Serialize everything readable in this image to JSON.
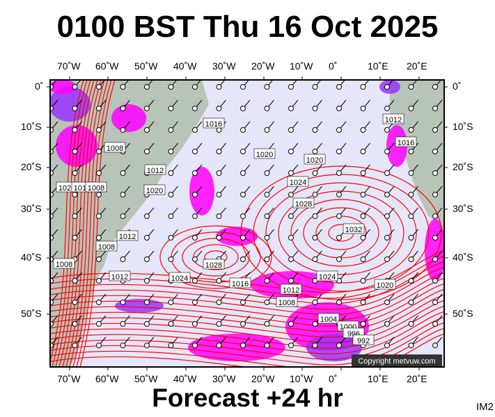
{
  "title": "0100 BST Thu 16 Oct 2025",
  "footer": "Forecast +24 hr",
  "image_code": "IM2",
  "copyright": "Copyright metvuw.com",
  "lon_labels": [
    "70˚W",
    "60˚W",
    "50˚W",
    "40˚W",
    "30˚W",
    "20˚W",
    "10˚W",
    "0˚",
    "10˚E",
    "20˚E"
  ],
  "lat_labels": [
    "0˚",
    "10˚S",
    "20˚S",
    "30˚S",
    "40˚S",
    "50˚S"
  ],
  "isobar_labels": [
    "1016",
    "1008",
    "1020",
    "1020",
    "1024",
    "1028",
    "1032",
    "1028",
    "1024",
    "1024",
    "1020",
    "1016",
    "1012",
    "1008",
    "1004",
    "1000",
    "996",
    "992",
    "1012",
    "1012",
    "1008",
    "1012",
    "1020",
    "1016",
    "1012",
    "1008",
    "1020",
    "1012",
    "1008"
  ],
  "colors": {
    "ocean": "#e6e6fa",
    "land": "#b8c4b8",
    "isobar": "#ff0000",
    "rain_light": "#ff00ff",
    "rain_mid": "#9933ff",
    "rain_heavy": "#3355ff"
  }
}
